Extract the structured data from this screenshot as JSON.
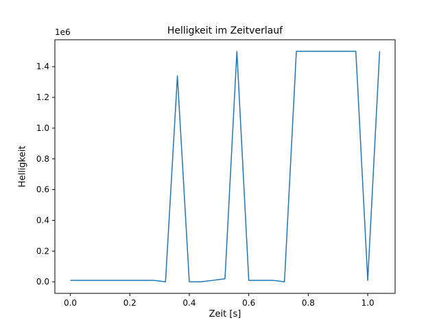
{
  "chart_data": {
    "type": "line",
    "title": "Helligkeit im Zeitverlauf",
    "xlabel": "Zeit [s]",
    "ylabel": "Helligkeit",
    "offset_text": "1e6",
    "x": [
      0.0,
      0.04,
      0.08,
      0.12,
      0.16,
      0.2,
      0.24,
      0.28,
      0.32,
      0.36,
      0.4,
      0.44,
      0.48,
      0.52,
      0.56,
      0.6,
      0.64,
      0.68,
      0.72,
      0.76,
      0.8,
      0.84,
      0.88,
      0.92,
      0.96,
      1.0,
      1.04
    ],
    "y": [
      10000,
      10000,
      10000,
      10000,
      10000,
      10000,
      10000,
      10000,
      0,
      1340000,
      0,
      0,
      10000,
      20000,
      1500000,
      10000,
      10000,
      10000,
      0,
      1500000,
      1500000,
      1500000,
      1500000,
      1500000,
      1500000,
      10000,
      1500000
    ],
    "x_ticks": [
      0.0,
      0.2,
      0.4,
      0.6,
      0.8,
      1.0
    ],
    "y_ticks": [
      0.0,
      0.2,
      0.4,
      0.6,
      0.8,
      1.0,
      1.2,
      1.4
    ],
    "y_scale": 1000000,
    "xlim": [
      -0.052,
      1.092
    ],
    "ylim": [
      -75000,
      1575000
    ],
    "line_color": "#1f77b4",
    "axis_color": "#000000",
    "grid": false,
    "legend": null
  }
}
